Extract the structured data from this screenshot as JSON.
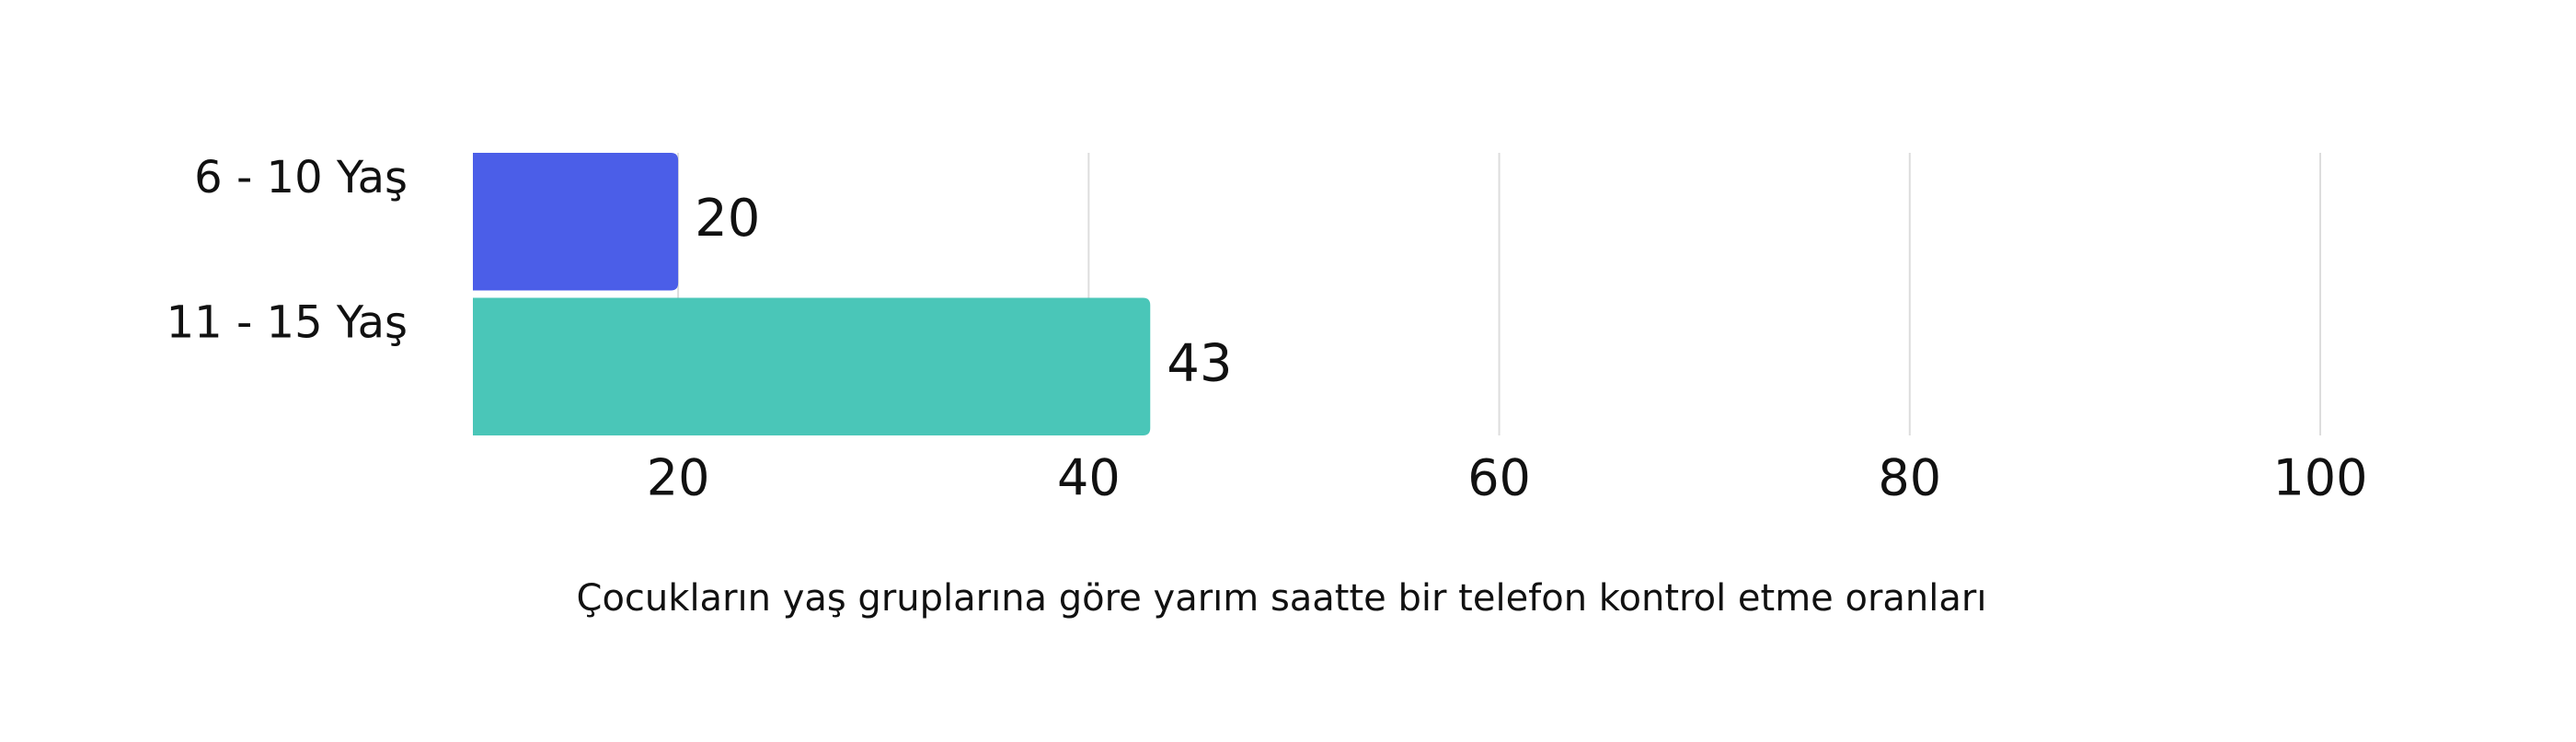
{
  "chart_data": {
    "type": "bar",
    "orientation": "horizontal",
    "title": "Çocukların yaş gruplarına göre yarım saatte bir telefon kontrol etme oranları",
    "categories": [
      "6 - 10 Yaş",
      "11 - 15 Yaş"
    ],
    "values": [
      20,
      43
    ],
    "colors": [
      "#4b5ee8",
      "#4ac6b8"
    ],
    "xlim": [
      10,
      100
    ],
    "xticks": [
      20,
      40,
      60,
      80,
      100
    ],
    "grid": true
  }
}
